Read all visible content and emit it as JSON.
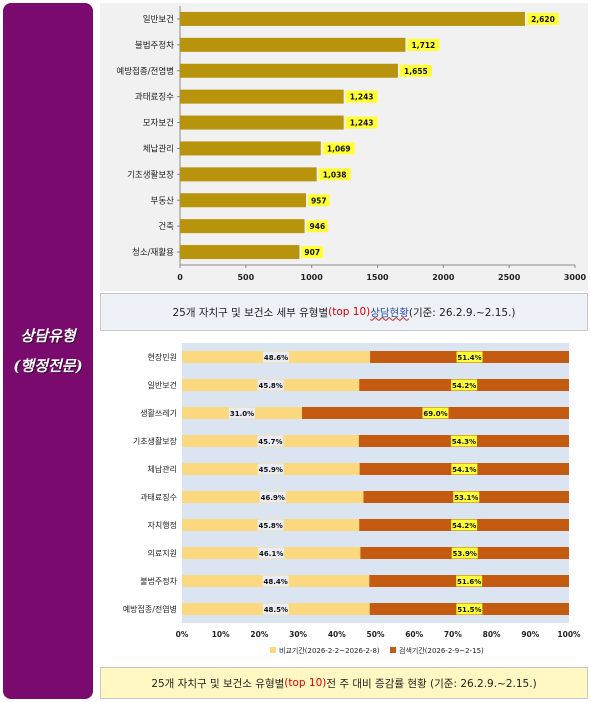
{
  "side_title": {
    "line1": "상담유형",
    "line2": "(행정전문)"
  },
  "captions": {
    "chart1": {
      "pre": "25개 자치구 및 보건소 세부 유형별",
      "hl": "(top 10)",
      "mid": " 상담현황",
      "post": " (기준: 26.2.9.~2.15.)"
    },
    "chart2": {
      "pre": "25개 자치구 및 보건소 유형별",
      "hl": "(top 10)",
      "post": " 전 주 대비 증감률 현황 (기준: 26.2.9.~2.15.)"
    }
  },
  "colors": {
    "bar": "#b8930c",
    "label_bg": "#ffff33",
    "compare": "#fcd97e",
    "search": "#c55a11",
    "bg2": "#dbe5f1"
  },
  "chart_data": [
    {
      "type": "bar",
      "orientation": "horizontal",
      "categories": [
        "일반보건",
        "불법주정차",
        "예방접종/전염병",
        "과태료징수",
        "모자보건",
        "체납관리",
        "기초생활보장",
        "부동산",
        "건축",
        "청소/재활용"
      ],
      "values": [
        2620,
        1712,
        1655,
        1243,
        1243,
        1069,
        1038,
        957,
        946,
        907
      ],
      "value_labels": [
        "2,620",
        "1,712",
        "1,655",
        "1,243",
        "1,243",
        "1,069",
        "1,038",
        "957",
        "946",
        "907"
      ],
      "xlim": [
        0,
        3000
      ],
      "xticks": [
        "0",
        "500",
        "1000",
        "1500",
        "2000",
        "2500",
        "3000"
      ]
    },
    {
      "type": "bar",
      "orientation": "horizontal",
      "stacked": "percent",
      "categories": [
        "현장민원",
        "일반보건",
        "생활쓰레기",
        "기초생활보장",
        "체납관리",
        "과태료징수",
        "자치행정",
        "의료지원",
        "불법주정차",
        "예방접종/전염병"
      ],
      "series": [
        {
          "name": "비교기간(2026-2-2~2026-2-8)",
          "values": [
            48.6,
            45.8,
            31.0,
            45.7,
            45.9,
            46.9,
            45.8,
            46.1,
            48.4,
            48.5
          ],
          "labels": [
            "48.6%",
            "45.8%",
            "31.0%",
            "45.7%",
            "45.9%",
            "46.9%",
            "45.8%",
            "46.1%",
            "48.4%",
            "48.5%"
          ]
        },
        {
          "name": "검색기간(2026-2-9~2-15)",
          "values": [
            51.4,
            54.2,
            69.0,
            54.3,
            54.1,
            53.1,
            54.2,
            53.9,
            51.6,
            51.5
          ],
          "labels": [
            "51.4%",
            "54.2%",
            "69.0%",
            "54.3%",
            "54.1%",
            "53.1%",
            "54.2%",
            "53.9%",
            "51.6%",
            "51.5%"
          ]
        }
      ],
      "xlim": [
        0,
        100
      ],
      "xticks": [
        "0%",
        "10%",
        "20%",
        "30%",
        "40%",
        "50%",
        "60%",
        "70%",
        "80%",
        "90%",
        "100%"
      ],
      "legend": "bottom"
    }
  ]
}
